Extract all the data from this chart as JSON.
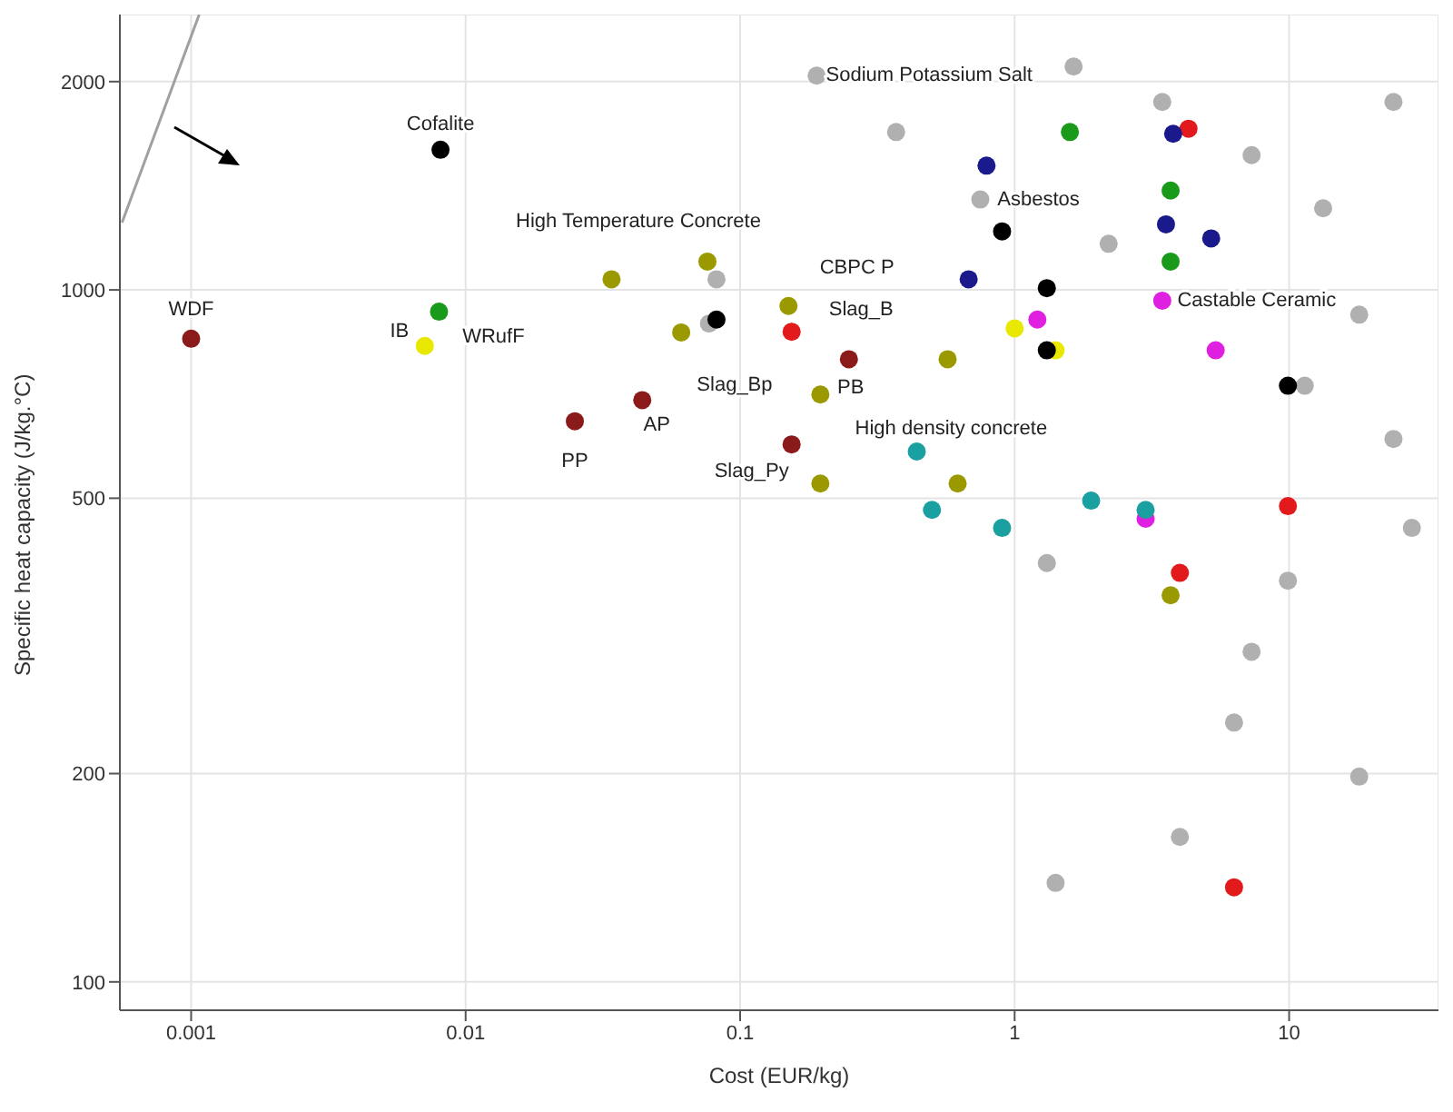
{
  "chart_data": {
    "type": "scatter",
    "xlabel": "Cost (EUR/kg)",
    "ylabel": "Specific heat capacity (J/kg.°C)",
    "log": "xy",
    "xlim": [
      0.00055,
      35
    ],
    "ylim": [
      91,
      2500
    ],
    "xticks": [
      0.001,
      0.01,
      0.1,
      1,
      10
    ],
    "yticks": [
      100,
      200,
      500,
      1000,
      2000
    ],
    "grid": true,
    "legend": false,
    "marker": "circle",
    "series": [
      {
        "type": "line",
        "marker": "none",
        "color": "#a0a0a0",
        "x": [
          0.00056,
          0.00107
        ],
        "values": [
          1251,
          2500
        ]
      },
      {
        "color": "#b0b0b0",
        "x": [
          0.75,
          0.19,
          0.37,
          0.077,
          0.082,
          1.64,
          3.45,
          7.3,
          13.3,
          24,
          18,
          24,
          28,
          7.3,
          18,
          6.3,
          4.0,
          1.41,
          1.31,
          9.9,
          2.2,
          11.4
        ],
        "values": [
          1351,
          2040,
          1691,
          894,
          1036,
          2103,
          1869,
          1566,
          1312,
          1869,
          921,
          609,
          453,
          300,
          198,
          237,
          162,
          139,
          403,
          380,
          1166,
          727
        ]
      },
      {
        "color": "#8b1a1a",
        "x": [
          0.001,
          0.025,
          0.044,
          0.249,
          0.154
        ],
        "values": [
          850,
          646,
          693,
          794,
          598
        ]
      },
      {
        "color": "#e31a1c",
        "x": [
          0.154,
          4.3,
          9.9,
          6.3,
          4.0
        ],
        "values": [
          870,
          1710,
          487,
          137,
          390
        ]
      },
      {
        "color": "#9a9a00",
        "x": [
          0.034,
          0.076,
          0.061,
          0.15,
          0.196,
          0.196,
          0.57,
          0.62,
          3.7
        ],
        "values": [
          1036,
          1099,
          868,
          948,
          706,
          525,
          794,
          525,
          362
        ]
      },
      {
        "color": "#e8e800",
        "x": [
          0.0071,
          1.41,
          1.0
        ],
        "values": [
          830,
          818,
          880
        ]
      },
      {
        "color": "#1a9a1a",
        "x": [
          0.008,
          1.59,
          3.7,
          3.7
        ],
        "values": [
          930,
          1691,
          1392,
          1099
        ]
      },
      {
        "color": "#1a1a8c",
        "x": [
          0.79,
          0.68,
          3.56,
          5.2,
          3.78
        ],
        "values": [
          1512,
          1036,
          1244,
          1187,
          1681
        ]
      },
      {
        "color": "#e020e0",
        "x": [
          5.4,
          3.0,
          1.21,
          3.45
        ],
        "values": [
          818,
          467,
          906,
          965
        ]
      },
      {
        "color": "#1aa0a0",
        "x": [
          0.5,
          1.9,
          0.9,
          3.0,
          0.44
        ],
        "values": [
          481,
          496,
          453,
          481,
          584
        ]
      },
      {
        "color": "#000000",
        "x": [
          0.0081,
          0.082,
          1.31,
          1.31,
          0.9,
          9.9
        ],
        "values": [
          1594,
          906,
          1006,
          818,
          1215,
          727
        ]
      }
    ],
    "annotations": [
      {
        "text": "WDF",
        "x": 0.001,
        "y": 850
      },
      {
        "text": "Cofalite",
        "x": 0.0081,
        "y": 1594
      },
      {
        "text": "IB",
        "x": 0.0071,
        "y": 830
      },
      {
        "text": "WRufF",
        "x": 0.008,
        "y": 930
      },
      {
        "text": "PP",
        "x": 0.025,
        "y": 646
      },
      {
        "text": "AP",
        "x": 0.044,
        "y": 693
      },
      {
        "text": "High Temperature Concrete",
        "x": 0.076,
        "y": 1099
      },
      {
        "text": "Slag_Bp",
        "x": 0.082,
        "y": 906
      },
      {
        "text": "CBPC P",
        "x": 0.154,
        "y": 870
      },
      {
        "text": "Slag_B",
        "x": 0.15,
        "y": 948
      },
      {
        "text": "PB",
        "x": 0.249,
        "y": 794
      },
      {
        "text": "High density concrete",
        "x": 0.196,
        "y": 706
      },
      {
        "text": "Slag_Py",
        "x": 0.154,
        "y": 598
      },
      {
        "text": "Sodium Potassium Salt",
        "x": 0.19,
        "y": 2040
      },
      {
        "text": "Asbestos",
        "x": 0.75,
        "y": 1351
      },
      {
        "text": "Castable Ceramic",
        "x": 3.45,
        "y": 965
      }
    ]
  }
}
